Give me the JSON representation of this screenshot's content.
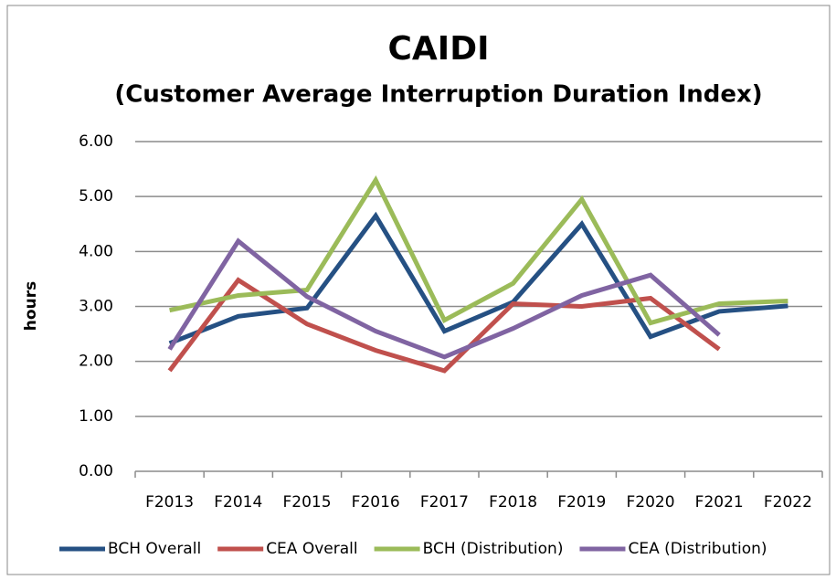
{
  "chart_data": {
    "type": "line",
    "title": "CAIDI",
    "subtitle": "(Customer Average Interruption Duration Index)",
    "y_label": "hours",
    "categories": [
      "F2013",
      "F2014",
      "F2015",
      "F2016",
      "F2017",
      "F2018",
      "F2019",
      "F2020",
      "F2021",
      "F2022"
    ],
    "series": [
      {
        "name": "BCH Overall",
        "color": "#255083",
        "values": [
          2.33,
          2.82,
          2.97,
          4.65,
          2.55,
          3.08,
          4.5,
          2.45,
          2.91,
          3.01
        ]
      },
      {
        "name": "CEA Overall",
        "color": "#c0504d",
        "values": [
          1.83,
          3.48,
          2.68,
          2.2,
          1.83,
          3.05,
          3.0,
          3.15,
          2.22,
          null
        ]
      },
      {
        "name": "BCH (Distribution)",
        "color": "#9bbb59",
        "values": [
          2.93,
          3.2,
          3.3,
          5.3,
          2.75,
          3.42,
          4.95,
          2.7,
          3.05,
          3.1
        ]
      },
      {
        "name": "CEA (Distribution)",
        "color": "#8064a2",
        "values": [
          2.22,
          4.19,
          3.18,
          2.55,
          2.08,
          2.6,
          3.2,
          3.57,
          2.48,
          null
        ]
      }
    ],
    "ylim": [
      0,
      6
    ],
    "yticks": [
      {
        "value": 0,
        "label": "0.00"
      },
      {
        "value": 1,
        "label": "1.00"
      },
      {
        "value": 2,
        "label": "2.00"
      },
      {
        "value": 3,
        "label": "3.00"
      },
      {
        "value": 4,
        "label": "4.00"
      },
      {
        "value": 5,
        "label": "5.00"
      },
      {
        "value": 6,
        "label": "6.00"
      }
    ],
    "grid": true,
    "legend": "bottom"
  }
}
